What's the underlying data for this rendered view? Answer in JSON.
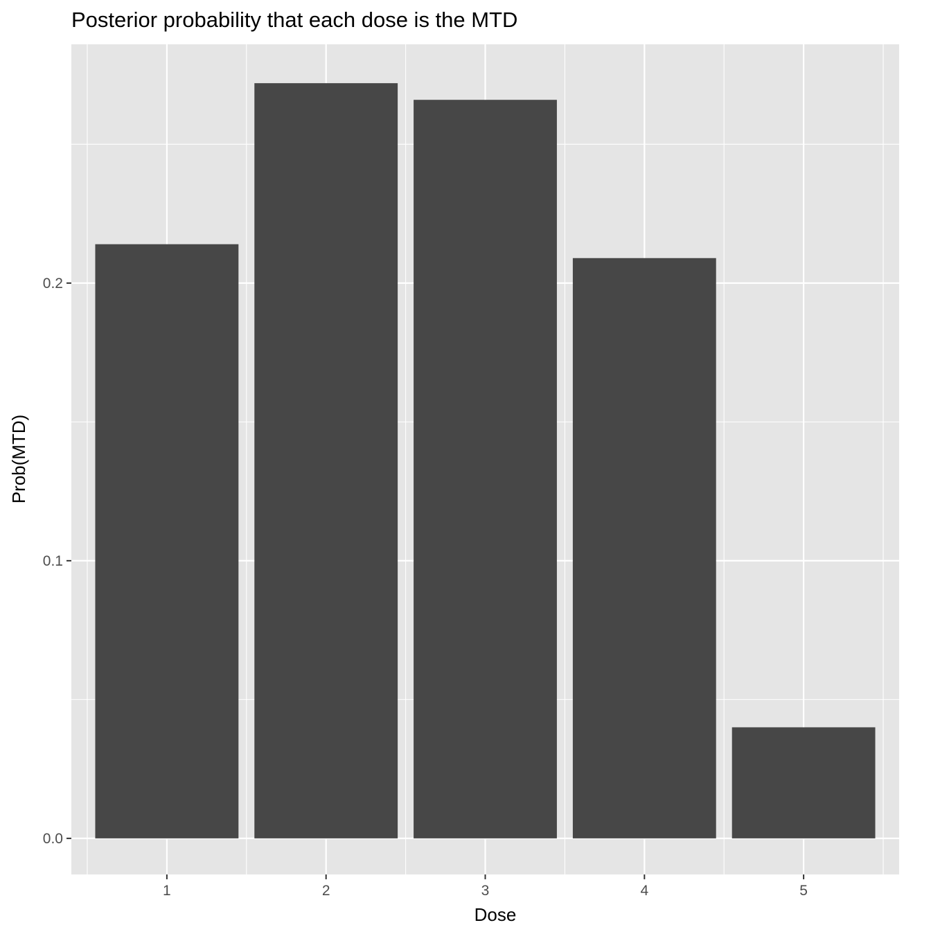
{
  "chart_data": {
    "type": "bar",
    "title": "Posterior probability that each dose is the MTD",
    "xlabel": "Dose",
    "ylabel": "Prob(MTD)",
    "categories": [
      "1",
      "2",
      "3",
      "4",
      "5"
    ],
    "values": [
      0.214,
      0.272,
      0.266,
      0.209,
      0.04
    ],
    "ylim": [
      -0.013,
      0.286
    ],
    "yticks": [
      0.0,
      0.1,
      0.2
    ],
    "ytick_labels": [
      "0.0",
      "0.1",
      "0.2"
    ],
    "grid": true,
    "legend": "none",
    "colors": {
      "bar": "#474747",
      "panel": "#e5e5e5",
      "grid": "#ffffff",
      "tick": "#333333"
    }
  }
}
